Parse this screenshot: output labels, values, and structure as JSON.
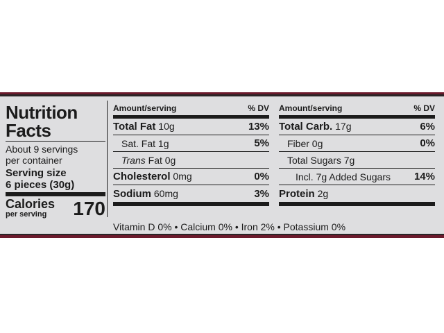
{
  "label": {
    "title_line1": "Nutrition",
    "title_line2": "Facts",
    "servings_line1": "About 9 servings",
    "servings_line2": "per container",
    "serving_size_label": "Serving size",
    "serving_size_value": "6 pieces (30g)",
    "calories_label": "Calories",
    "calories_sub": "per serving",
    "calories_value": "170",
    "header_amount": "Amount/serving",
    "header_dv": "% DV"
  },
  "left_rows": [
    {
      "name": "Total Fat",
      "amount": "10g",
      "dv": "13%"
    },
    {
      "name": "Sat. Fat",
      "amount": "1g",
      "dv": "5%"
    },
    {
      "name": "Trans",
      "name_suffix": "Fat",
      "amount": "0g",
      "dv": ""
    },
    {
      "name": "Cholesterol",
      "amount": "0mg",
      "dv": "0%"
    },
    {
      "name": "Sodium",
      "amount": "60mg",
      "dv": "3%"
    }
  ],
  "right_rows": [
    {
      "name": "Total Carb.",
      "amount": "17g",
      "dv": "6%"
    },
    {
      "name": "Fiber",
      "amount": "0g",
      "dv": "0%"
    },
    {
      "name": "Total Sugars",
      "amount": "7g",
      "dv": ""
    },
    {
      "name": "Incl. 7g Added Sugars",
      "amount": "",
      "dv": "14%"
    },
    {
      "name": "Protein",
      "amount": "2g",
      "dv": ""
    }
  ],
  "vitamins": "Vitamin D 0% • Calcium 0% • Iron 2% • Potassium 0%",
  "colors": {
    "label_bg": "#dedee0",
    "band": "#6b1a2c",
    "ink": "#1b1b1b"
  }
}
